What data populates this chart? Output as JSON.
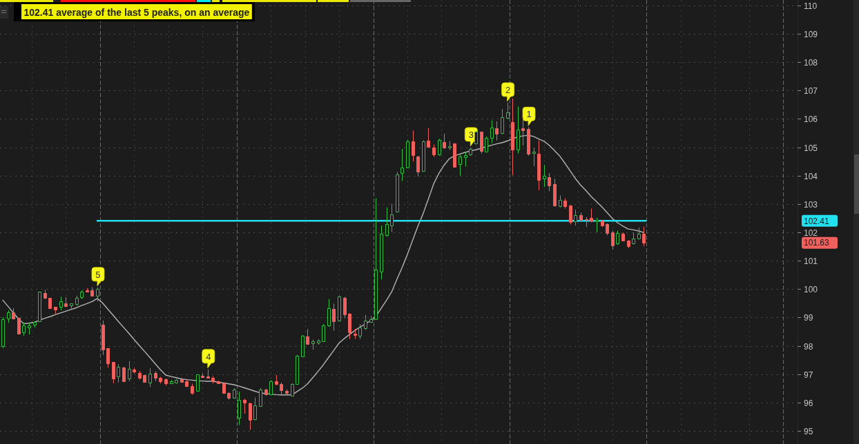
{
  "chart_data": {
    "type": "candlestick",
    "title": "102.41 average of the last 5 peaks, on an average",
    "categories": [
      null,
      null,
      null,
      null,
      null,
      null,
      null,
      null,
      null,
      null,
      null,
      null,
      null,
      null,
      null,
      null,
      null,
      null,
      null,
      null,
      null,
      null,
      null,
      null,
      null,
      null,
      null,
      null,
      null,
      null,
      null,
      null,
      null,
      null,
      null,
      null,
      null,
      null,
      null,
      null,
      null,
      null,
      null,
      null,
      null,
      null,
      null,
      null,
      null,
      null,
      null,
      null,
      null,
      null,
      null,
      null,
      null,
      null,
      null,
      null,
      null,
      null,
      null,
      null,
      null,
      null,
      null,
      null,
      null,
      null,
      null,
      null,
      null,
      null,
      null,
      null,
      null,
      null,
      null,
      null,
      null,
      null,
      null,
      null,
      null,
      null,
      null,
      null,
      null,
      null,
      null,
      null,
      null,
      null,
      null,
      null,
      null,
      null,
      null,
      null,
      null,
      null,
      null,
      null,
      null,
      null,
      null,
      null,
      null,
      null,
      null,
      null,
      null,
      null,
      null,
      null,
      null,
      null,
      null,
      null,
      null,
      null,
      null
    ],
    "ohlc": [
      [
        97.99,
        99.01,
        97.92,
        98.93
      ],
      [
        98.97,
        99.25,
        98.81,
        99.17
      ],
      [
        99.18,
        99.33,
        98.93,
        98.97
      ],
      [
        98.98,
        98.99,
        98.43,
        98.44
      ],
      [
        98.48,
        98.81,
        98.36,
        98.73
      ],
      [
        98.64,
        98.81,
        98.4,
        98.72
      ],
      [
        98.75,
        98.86,
        98.64,
        98.83
      ],
      [
        98.86,
        99.9,
        98.86,
        99.9
      ],
      [
        99.87,
        99.98,
        99.65,
        99.69
      ],
      [
        99.69,
        99.69,
        99.33,
        99.33
      ],
      [
        99.37,
        99.37,
        99.13,
        99.29
      ],
      [
        99.37,
        99.73,
        99.25,
        99.56
      ],
      [
        99.49,
        99.72,
        99.37,
        99.41
      ],
      [
        99.43,
        99.49,
        99.29,
        99.49
      ],
      [
        99.48,
        99.77,
        99.41,
        99.69
      ],
      [
        99.72,
        99.96,
        99.65,
        99.92
      ],
      [
        99.96,
        100.03,
        99.88,
        99.9
      ],
      [
        99.96,
        100.07,
        99.77,
        99.77
      ],
      [
        99.77,
        100.06,
        99.57,
        100.0
      ],
      [
        98.75,
        98.89,
        97.68,
        97.88
      ],
      [
        97.92,
        97.92,
        97.23,
        97.39
      ],
      [
        97.42,
        97.42,
        96.68,
        96.84
      ],
      [
        96.92,
        97.35,
        96.71,
        97.27
      ],
      [
        97.23,
        97.26,
        96.76,
        96.76
      ],
      [
        96.84,
        97.46,
        96.75,
        97.19
      ],
      [
        97.17,
        97.22,
        97.03,
        97.09
      ],
      [
        97.05,
        97.11,
        96.81,
        96.87
      ],
      [
        96.97,
        96.98,
        96.73,
        96.73
      ],
      [
        96.71,
        97.21,
        96.55,
        97.03
      ],
      [
        97.05,
        97.11,
        96.75,
        96.87
      ],
      [
        96.87,
        96.91,
        96.67,
        96.75
      ],
      [
        96.83,
        96.85,
        96.6,
        96.67
      ],
      [
        96.67,
        96.79,
        96.65,
        96.75
      ],
      [
        96.71,
        96.83,
        96.67,
        96.79
      ],
      [
        96.83,
        96.87,
        96.71,
        96.73
      ],
      [
        96.75,
        96.79,
        96.55,
        96.59
      ],
      [
        96.57,
        96.67,
        96.28,
        96.34
      ],
      [
        96.4,
        96.99,
        96.39,
        96.99
      ],
      [
        96.95,
        97.03,
        96.87,
        96.89
      ],
      [
        96.93,
        97.17,
        96.87,
        96.87
      ],
      [
        96.87,
        96.93,
        96.67,
        96.77
      ],
      [
        96.75,
        96.77,
        96.67,
        96.69
      ],
      [
        96.67,
        96.71,
        96.31,
        96.33
      ],
      [
        96.33,
        96.36,
        96.1,
        96.17
      ],
      [
        96.17,
        96.51,
        96.14,
        96.45
      ],
      [
        95.46,
        96.38,
        95.21,
        96.1
      ],
      [
        96.1,
        96.14,
        95.61,
        96.0
      ],
      [
        95.98,
        96.0,
        95.04,
        95.38
      ],
      [
        95.42,
        96.18,
        95.38,
        95.9
      ],
      [
        95.88,
        96.51,
        95.86,
        96.47
      ],
      [
        96.47,
        96.49,
        96.25,
        96.28
      ],
      [
        96.28,
        96.79,
        96.25,
        96.75
      ],
      [
        96.75,
        96.97,
        96.61,
        96.65
      ],
      [
        96.65,
        96.71,
        96.25,
        96.43
      ],
      [
        96.41,
        96.46,
        96.25,
        96.33
      ],
      [
        96.25,
        96.68,
        96.22,
        96.65
      ],
      [
        96.65,
        97.68,
        96.65,
        97.65
      ],
      [
        97.63,
        98.38,
        97.62,
        98.36
      ],
      [
        98.32,
        98.59,
        98.04,
        98.06
      ],
      [
        98.1,
        98.22,
        97.86,
        98.16
      ],
      [
        98.12,
        98.24,
        98.04,
        98.18
      ],
      [
        98.16,
        98.77,
        98.14,
        98.73
      ],
      [
        98.73,
        99.65,
        98.67,
        99.33
      ],
      [
        99.31,
        99.49,
        98.54,
        98.86
      ],
      [
        98.89,
        99.77,
        98.86,
        99.73
      ],
      [
        99.69,
        99.73,
        98.97,
        99.1
      ],
      [
        99.13,
        99.15,
        98.24,
        98.48
      ],
      [
        98.44,
        98.6,
        98.24,
        98.38
      ],
      [
        98.36,
        98.77,
        98.24,
        98.65
      ],
      [
        98.62,
        99.09,
        98.56,
        98.89
      ],
      [
        98.85,
        99.05,
        98.81,
        98.93
      ],
      [
        98.93,
        103.2,
        98.93,
        100.7
      ],
      [
        100.61,
        102.24,
        100.34,
        101.95
      ],
      [
        101.91,
        102.88,
        101.85,
        102.28
      ],
      [
        102.24,
        103.0,
        102.01,
        102.64
      ],
      [
        102.72,
        104.13,
        102.7,
        104.05
      ],
      [
        104.09,
        104.94,
        103.81,
        104.29
      ],
      [
        104.29,
        105.26,
        104.29,
        105.22
      ],
      [
        105.22,
        105.59,
        104.5,
        104.72
      ],
      [
        104.67,
        104.7,
        103.97,
        104.13
      ],
      [
        104.16,
        105.24,
        104.13,
        105.22
      ],
      [
        105.24,
        105.67,
        104.98,
        105.02
      ],
      [
        104.99,
        105.1,
        104.66,
        104.75
      ],
      [
        104.74,
        105.3,
        104.7,
        105.26
      ],
      [
        105.18,
        105.48,
        104.94,
        104.98
      ],
      [
        105.0,
        105.22,
        104.9,
        105.04
      ],
      [
        105.13,
        105.14,
        104.29,
        104.32
      ],
      [
        104.4,
        104.74,
        103.99,
        104.67
      ],
      [
        104.66,
        104.82,
        104.32,
        104.72
      ],
      [
        104.75,
        104.99,
        104.7,
        104.94
      ],
      [
        105.14,
        105.58,
        105.1,
        105.54
      ],
      [
        105.54,
        105.56,
        104.78,
        104.86
      ],
      [
        104.84,
        105.38,
        104.82,
        105.34
      ],
      [
        105.34,
        105.95,
        105.14,
        105.69
      ],
      [
        105.67,
        105.91,
        105.24,
        105.48
      ],
      [
        105.5,
        106.35,
        105.46,
        106.07
      ],
      [
        106.03,
        106.57,
        105.99,
        106.23
      ],
      [
        105.88,
        106.72,
        104.01,
        104.92
      ],
      [
        104.92,
        106.44,
        104.78,
        105.61
      ],
      [
        105.67,
        106.05,
        105.06,
        105.59
      ],
      [
        105.64,
        105.71,
        104.7,
        104.78
      ],
      [
        104.8,
        104.98,
        104.33,
        104.84
      ],
      [
        104.78,
        105.24,
        103.49,
        103.85
      ],
      [
        103.89,
        104.38,
        103.61,
        103.99
      ],
      [
        103.95,
        104.09,
        103.45,
        103.65
      ],
      [
        103.69,
        103.89,
        102.9,
        102.95
      ],
      [
        102.92,
        103.3,
        102.88,
        103.14
      ],
      [
        103.12,
        103.2,
        102.84,
        102.92
      ],
      [
        102.95,
        102.96,
        102.28,
        102.36
      ],
      [
        102.38,
        102.8,
        102.24,
        102.6
      ],
      [
        102.6,
        102.7,
        102.38,
        102.44
      ],
      [
        102.47,
        102.54,
        102.19,
        102.43
      ],
      [
        102.5,
        102.84,
        102.36,
        102.41
      ],
      [
        102.4,
        102.52,
        102.01,
        102.45
      ],
      [
        102.38,
        102.44,
        102.19,
        102.24
      ],
      [
        102.28,
        102.32,
        101.9,
        101.98
      ],
      [
        102.01,
        102.06,
        101.39,
        101.53
      ],
      [
        101.61,
        102.06,
        101.55,
        101.97
      ],
      [
        101.95,
        101.99,
        101.69,
        101.71
      ],
      [
        101.71,
        101.73,
        101.44,
        101.52
      ],
      [
        101.61,
        101.99,
        101.57,
        101.79
      ],
      [
        101.79,
        102.17,
        101.75,
        101.95
      ],
      [
        101.95,
        102.2,
        101.51,
        101.63
      ]
    ],
    "colors": [
      "#2fc03e",
      "#2fc03e",
      "#f0605d",
      "#f0605d",
      "#2fc03e",
      "#2fc03e",
      "#2fc03e",
      "#2fc03e",
      "#f0605d",
      "#f0605d",
      "#f0605d",
      "#2fc03e",
      "#f0605d",
      "#2fc03e",
      "#2fc03e",
      "#2fc03e",
      "#f0605d",
      "#f0605d",
      "#2fc03e",
      "#f0605d",
      "#f0605d",
      "#f0605d",
      "#2fc03e",
      "#f0605d",
      "#2fc03e",
      "#f0605d",
      "#f0605d",
      "#f0605d",
      "#2fc03e",
      "#f0605d",
      "#f0605d",
      "#f0605d",
      "#2fc03e",
      "#2fc03e",
      "#f0605d",
      "#f0605d",
      "#f0605d",
      "#2fc03e",
      "#f0605d",
      "#f0605d",
      "#f0605d",
      "#f0605d",
      "#f0605d",
      "#f0605d",
      "#2fc03e",
      "#2fc03e",
      "#f0605d",
      "#f0605d",
      "#2fc03e",
      "#2fc03e",
      "#f0605d",
      "#2fc03e",
      "#f0605d",
      "#f0605d",
      "#f0605d",
      "#2fc03e",
      "#2fc03e",
      "#2fc03e",
      "#f0605d",
      "#2fc03e",
      "#2fc03e",
      "#2fc03e",
      "#2fc03e",
      "#f0605d",
      "#2fc03e",
      "#f0605d",
      "#f0605d",
      "#f0605d",
      "#2fc03e",
      "#2fc03e",
      "#2fc03e",
      "#2fc03e",
      "#2fc03e",
      "#2fc03e",
      "#2fc03e",
      "#2fc03e",
      "#2fc03e",
      "#2fc03e",
      "#f0605d",
      "#f0605d",
      "#2fc03e",
      "#f0605d",
      "#f0605d",
      "#2fc03e",
      "#f0605d",
      "#2fc03e",
      "#f0605d",
      "#2fc03e",
      "#2fc03e",
      "#2fc03e",
      "#2fc03e",
      "#f0605d",
      "#2fc03e",
      "#2fc03e",
      "#f0605d",
      "#2fc03e",
      "#2fc03e",
      "#f0605d",
      "#2fc03e",
      "#f0605d",
      "#f0605d",
      "#2fc03e",
      "#f0605d",
      "#2fc03e",
      "#f0605d",
      "#f0605d",
      "#2fc03e",
      "#f0605d",
      "#f0605d",
      "#2fc03e",
      "#f0605d",
      "#f0605d",
      "#f0605d",
      "#2fc03e",
      "#f0605d",
      "#f0605d",
      "#f0605d",
      "#2fc03e",
      "#f0605d",
      "#f0605d",
      "#2fc03e",
      "#2fc03e",
      "#f0605d"
    ],
    "value_labels": [
      null,
      null,
      null,
      null,
      null,
      null,
      null,
      null,
      null,
      null,
      null,
      null,
      null,
      null,
      null,
      null,
      null,
      null,
      null,
      null,
      null,
      null,
      null,
      null,
      null,
      null,
      null,
      null,
      null,
      null,
      null,
      null,
      null,
      null,
      null,
      null,
      null,
      null,
      null,
      null,
      null,
      null,
      null,
      null,
      null,
      null,
      null,
      null,
      null,
      null,
      null,
      null,
      null,
      null,
      null,
      null,
      null,
      null,
      null,
      null,
      null,
      null,
      null,
      null,
      null,
      null,
      null,
      null,
      null,
      null,
      null,
      null,
      null,
      null,
      null,
      null,
      null,
      null,
      null,
      null,
      null,
      null,
      null,
      null,
      null,
      null,
      null,
      null,
      null,
      null,
      null,
      null,
      null,
      null,
      null,
      null,
      null,
      null,
      null,
      null,
      null,
      null,
      null,
      null,
      null,
      null,
      null,
      null,
      null,
      null,
      null,
      null,
      null,
      null,
      null,
      null,
      null,
      null,
      null,
      null,
      null,
      null,
      "101.63"
    ],
    "series": [
      {
        "type": "line",
        "color": "#b4b4b4",
        "values": [
          99.61,
          99.39,
          99.17,
          98.95,
          98.78,
          98.8,
          98.83,
          98.9,
          98.97,
          99.03,
          99.1,
          99.16,
          99.22,
          99.28,
          99.34,
          99.42,
          99.49,
          99.56,
          99.67,
          99.51,
          99.29,
          99.08,
          98.86,
          98.65,
          98.44,
          98.22,
          98.01,
          97.8,
          97.59,
          97.37,
          97.16,
          96.97,
          96.92,
          96.88,
          96.83,
          96.81,
          96.79,
          96.77,
          96.76,
          96.75,
          96.75,
          96.72,
          96.69,
          96.66,
          96.63,
          96.58,
          96.52,
          96.46,
          96.4,
          96.34,
          96.32,
          96.3,
          96.28,
          96.27,
          96.27,
          96.27,
          96.39,
          96.51,
          96.66,
          96.88,
          97.1,
          97.33,
          97.59,
          97.84,
          98.1,
          98.26,
          98.4,
          98.54,
          98.66,
          98.77,
          98.89,
          99.04,
          99.32,
          99.6,
          99.9,
          100.34,
          100.76,
          101.22,
          101.72,
          102.22,
          102.66,
          103.18,
          103.71,
          104.08,
          104.37,
          104.6,
          104.7,
          104.76,
          104.82,
          104.87,
          104.91,
          104.96,
          105.02,
          105.07,
          105.12,
          105.16,
          105.22,
          105.29,
          105.37,
          105.4,
          105.42,
          105.38,
          105.29,
          105.21,
          105.07,
          104.88,
          104.69,
          104.43,
          104.16,
          103.89,
          103.66,
          103.47,
          103.26,
          103.08,
          102.9,
          102.7,
          102.49,
          102.34,
          102.22,
          102.12,
          102.09,
          102.05,
          101.99
        ]
      }
    ],
    "annotations": [
      {
        "text": "5",
        "y": 100.06
      },
      {
        "text": "4",
        "y": 97.17
      },
      {
        "text": "3",
        "y": 104.99
      },
      {
        "text": "2",
        "y": 106.57
      },
      {
        "text": "1",
        "y": 105.71
      }
    ],
    "ref_lines": [
      {
        "axis": "y",
        "value": 102.41,
        "color": "#22e0ee"
      }
    ],
    "ylim": [
      94.54,
      110.19
    ],
    "yticks": [
      95,
      96,
      97,
      98,
      99,
      100,
      101,
      102,
      102.41,
      103,
      104,
      105,
      106,
      107,
      108,
      109,
      110
    ],
    "grid": true,
    "tick_labels": "y"
  }
}
